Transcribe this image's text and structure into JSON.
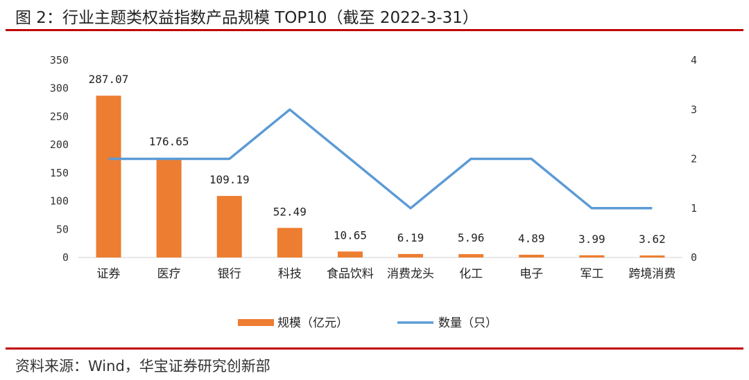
{
  "title": "图 2：行业主题类权益指数产品规模 TOP10（截至 2022-3-31）",
  "source": "资料来源：Wind，华宝证券研究创新部",
  "colors": {
    "bar": "#ED7D31",
    "line": "#5B9BD5",
    "rule": "#C00000"
  },
  "chart_data": {
    "type": "bar",
    "categories": [
      "证券",
      "医疗",
      "银行",
      "科技",
      "食品饮料",
      "消费龙头",
      "化工",
      "电子",
      "军工",
      "跨境消费"
    ],
    "series": [
      {
        "name": "规模（亿元）",
        "type": "bar",
        "axis": "left",
        "values": [
          287.07,
          176.65,
          109.19,
          52.49,
          10.65,
          6.19,
          5.96,
          4.89,
          3.99,
          3.62
        ],
        "labels": [
          "287.07",
          "176.65",
          "109.19",
          "52.49",
          "10.65",
          "6.19",
          "5.96",
          "4.89",
          "3.99",
          "3.62"
        ]
      },
      {
        "name": "数量（只）",
        "type": "line",
        "axis": "right",
        "values": [
          2,
          2,
          2,
          3,
          2,
          1,
          2,
          2,
          1,
          1
        ]
      }
    ],
    "y_left": {
      "ylim": [
        0,
        350
      ],
      "ticks": [
        0,
        50,
        100,
        150,
        200,
        250,
        300,
        350
      ]
    },
    "y_right": {
      "ylim": [
        0,
        4
      ],
      "ticks": [
        0,
        1,
        2,
        3,
        4
      ]
    },
    "grid": false,
    "legend": "bottom"
  }
}
